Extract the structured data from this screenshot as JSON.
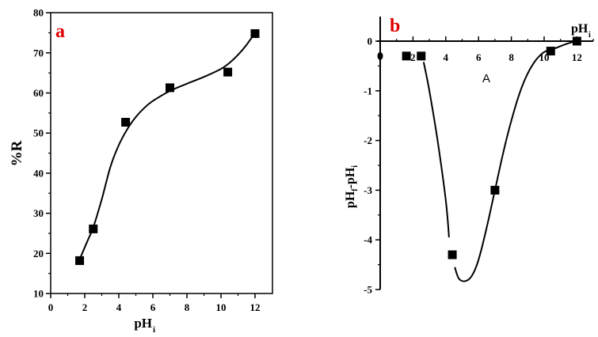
{
  "chart_data": [
    {
      "type": "scatter",
      "panel_label": "a",
      "xlabel": "pH",
      "xlabel_sub": "i",
      "ylabel": "%R",
      "xlim": [
        0,
        13
      ],
      "ylim": [
        10,
        80
      ],
      "xticks": [
        "0",
        "2",
        "4",
        "6",
        "8",
        "10",
        "12"
      ],
      "yticks": [
        "10",
        "20",
        "30",
        "40",
        "50",
        "60",
        "70",
        "80"
      ],
      "points": {
        "x": [
          1.7,
          2.5,
          4.4,
          7.0,
          10.4,
          12.0
        ],
        "y": [
          18.2,
          26.1,
          52.7,
          61.3,
          65.2,
          74.8
        ]
      },
      "fit_curve": {
        "x": [
          1.7,
          2.2,
          2.5,
          3.0,
          3.5,
          4.0,
          4.5,
          5.0,
          5.5,
          6.0,
          7.0,
          8.0,
          9.0,
          10.0,
          10.5,
          11.0,
          11.5,
          12.0
        ],
        "y": [
          18.5,
          23.5,
          26.5,
          33.5,
          41.5,
          47.0,
          51.0,
          54.0,
          56.3,
          58.0,
          60.5,
          62.3,
          64.0,
          66.0,
          67.5,
          69.5,
          72.0,
          75.0
        ]
      },
      "grid": false
    },
    {
      "type": "scatter",
      "panel_label": "b",
      "xlabel": "pH",
      "xlabel_sub": "i",
      "ylabel": "pH",
      "ylabel_sub1": "f",
      "ylabel_mid": "-pH",
      "ylabel_sub2": "i",
      "annotation": "A",
      "xlim": [
        0,
        13
      ],
      "ylim": [
        -5,
        0.5
      ],
      "xticks": [
        "2",
        "4",
        "6",
        "8",
        "10",
        "12"
      ],
      "yticks": [
        "0",
        "-1",
        "-2",
        "-3",
        "-4",
        "-5"
      ],
      "points": {
        "x": [
          0,
          1.6,
          2.5,
          4.4,
          7.0,
          10.4,
          12.0
        ],
        "y": [
          -0.3,
          -0.3,
          -0.3,
          -4.3,
          -3.0,
          -0.2,
          0.0
        ]
      },
      "fit_segments": [
        {
          "x": [
            2.65,
            3.0,
            3.5,
            4.0,
            4.2
          ],
          "y": [
            -0.42,
            -1.0,
            -2.0,
            -3.2,
            -3.95
          ]
        },
        {
          "x": [
            4.55,
            4.8,
            5.2,
            5.6,
            6.0,
            6.5,
            7.0,
            7.5,
            8.0,
            8.5,
            9.0,
            9.5,
            10.0,
            10.4,
            11.0,
            11.6,
            12.0
          ],
          "y": [
            -4.55,
            -4.78,
            -4.83,
            -4.72,
            -4.4,
            -3.75,
            -3.0,
            -2.25,
            -1.6,
            -1.05,
            -0.65,
            -0.38,
            -0.22,
            -0.18,
            -0.1,
            -0.03,
            0.0
          ]
        }
      ],
      "grid": false
    }
  ],
  "colors": {
    "panel_label": "#e00000",
    "marks": "#000000"
  }
}
